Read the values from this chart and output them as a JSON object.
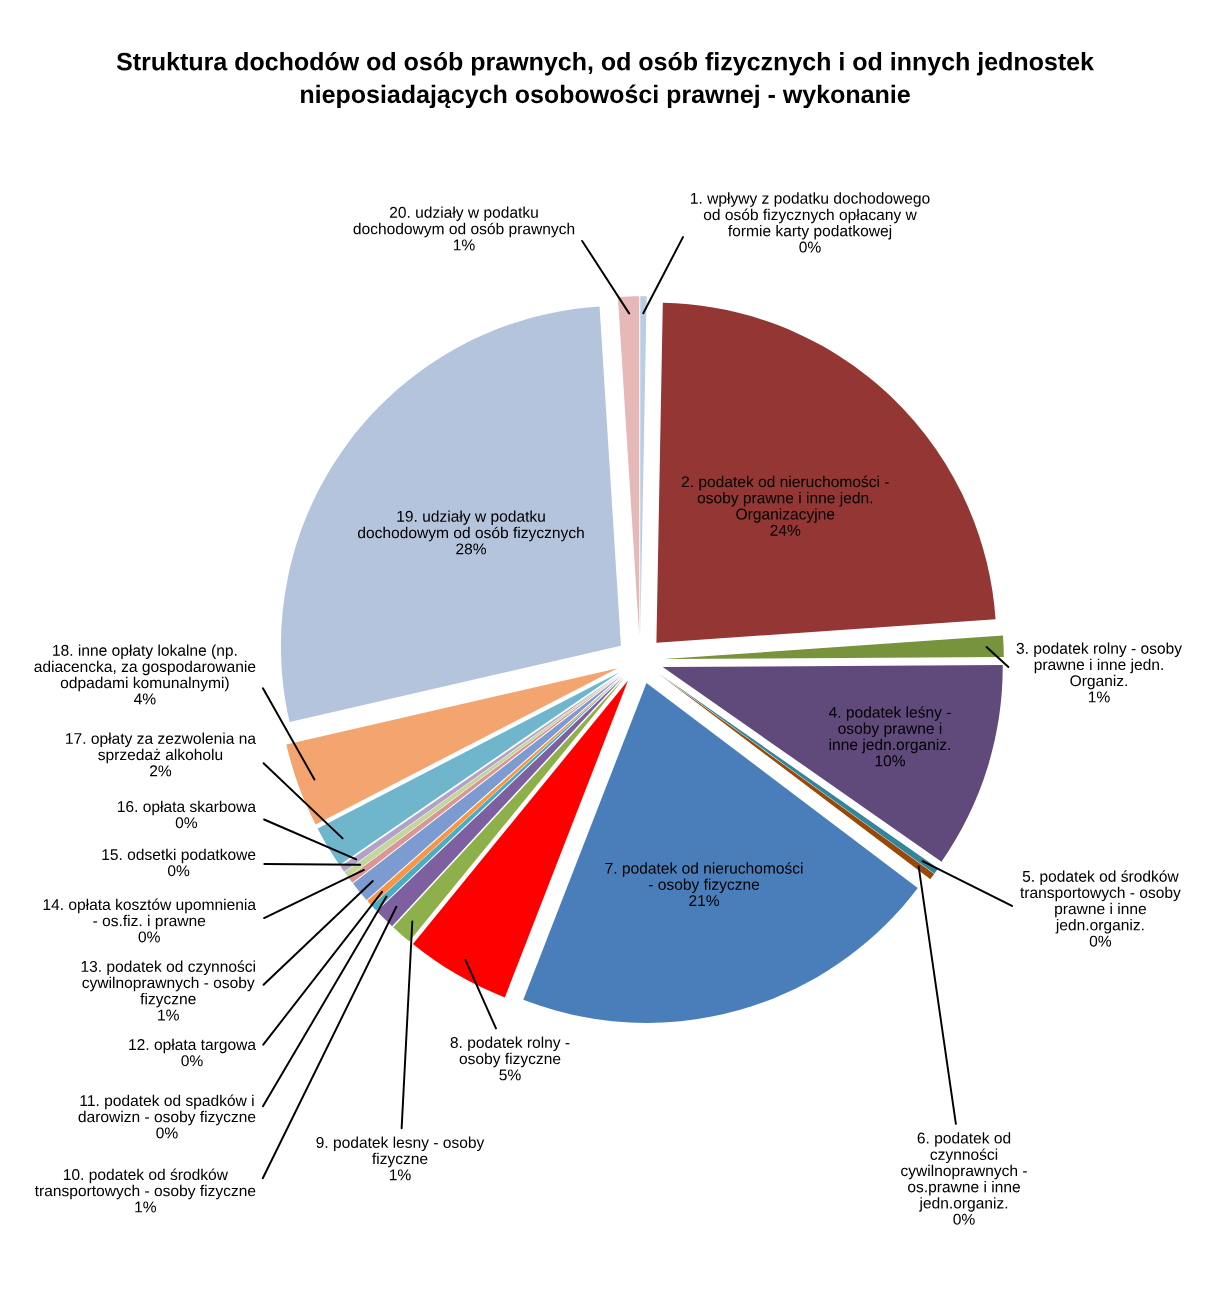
{
  "chart_data": {
    "type": "pie",
    "title": "Struktura dochodów od osób prawnych, od osób fizycznych i od innych jednostek nieposiadających osobowości prawnej - wykonanie",
    "categories": [
      "1. wpływy z podatku dochodowego od osób fizycznych opłacany w formie karty podatkowej",
      "2. podatek od nieruchomości - osoby prawne i inne jedn. Organizacyjne",
      "3. podatek rolny - osoby prawne i inne jedn. Organiz.",
      "4. podatek leśny - osoby prawne i inne jedn.organiz.",
      "5. podatek od środków transportowych - osoby prawne i inne jedn.organiz.",
      "6. podatek od czynności cywilnoprawnych - os.prawne i inne jedn.organiz.",
      "7. podatek od nieruchomości - osoby fizyczne",
      "8. podatek rolny - osoby fizyczne",
      "9. podatek lesny - osoby fizyczne",
      "10. podatek od środków transportowych - osoby fizyczne",
      "11. podatek od spadków i darowizn - osoby fizyczne",
      "12. opłata targowa",
      "13. podatek od czynności cywilnoprawnych - osoby fizyczne",
      "14. opłata kosztów upomnienia - os.fiz. i prawne",
      "15. odsetki podatkowe",
      "16. opłata skarbowa",
      "17. opłaty za zezwolenia na sprzedaż alkoholu",
      "18. inne opłaty lokalne (np. adiacencka, za gospodarowanie odpadami komunalnymi)",
      "19. udziały w podatku dochodowym od osób fizycznych",
      "20. udziały w podatku dochodowym od osób prawnych"
    ],
    "values": [
      0.3,
      23.6,
      1,
      9.8,
      0.3,
      0.3,
      20.6,
      5,
      1,
      1,
      0.3,
      0.3,
      1,
      0.3,
      0.3,
      0.3,
      2,
      4,
      27.6,
      1
    ],
    "value_labels": [
      "0%",
      "24%",
      "1%",
      "10%",
      "0%",
      "0%",
      "21%",
      "5%",
      "1%",
      "1%",
      "0%",
      "0%",
      "1%",
      "0%",
      "0%",
      "0%",
      "2%",
      "4%",
      "28%",
      "1%"
    ],
    "colors": [
      "#b9cde5",
      "#943634",
      "#77933c",
      "#604a7b",
      "#31859c",
      "#984807",
      "#4a7ebb",
      "#ff0000",
      "#8eb04a",
      "#7e5fa0",
      "#4bacc6",
      "#f79646",
      "#7c9bd0",
      "#d99694",
      "#c3d69b",
      "#b3a2c7",
      "#6fb6cc",
      "#f4a46f",
      "#b5c4dd",
      "#e6b9b8"
    ]
  }
}
